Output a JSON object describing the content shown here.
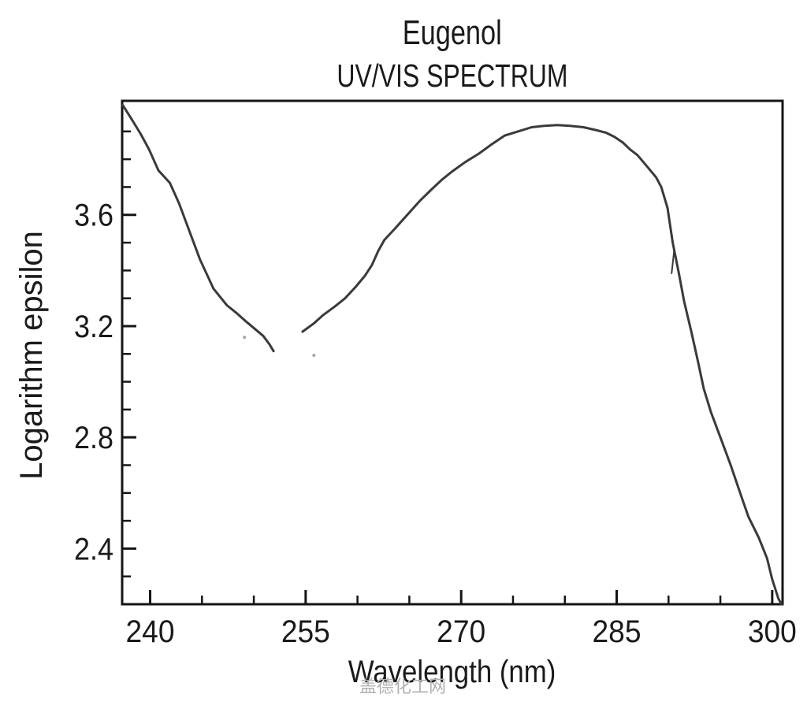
{
  "header": {
    "title": "Eugenol",
    "subtitle": "UV/VIS SPECTRUM"
  },
  "watermark": {
    "text": "盖德化工网",
    "color": "#b3b0b0"
  },
  "chart_data": {
    "type": "line",
    "title": "Eugenol",
    "subtitle": "UV/VIS SPECTRUM",
    "xlabel": "Wavelength (nm)",
    "ylabel": "Logarithm epsilon",
    "xlim": [
      237.3,
      301.0
    ],
    "ylim": [
      2.2,
      4.01
    ],
    "grid": false,
    "legend": null,
    "axis_color": "#151515",
    "text_color": "#1a1a1a",
    "line_color": "#3a3a3a",
    "speck_color": "#a8a4a4",
    "x_ticks_major": [
      240,
      255,
      270,
      285,
      300
    ],
    "x_ticks_minor": [
      245,
      250,
      260,
      265,
      275,
      280,
      290,
      295
    ],
    "y_ticks_major": [
      3.6,
      3.2,
      2.8,
      2.4
    ],
    "y_tick_labels": [
      "3.6",
      "3.2",
      "2.8",
      "2.4"
    ],
    "y_ticks_minor": [
      3.9,
      3.8,
      3.7,
      3.5,
      3.4,
      3.3,
      3.1,
      3.0,
      2.9,
      2.7,
      2.6,
      2.5,
      2.3
    ],
    "series": [
      {
        "name": "spectrum-curve-left-segment",
        "width": 3,
        "points": [
          [
            237.35,
            3.995
          ],
          [
            238.2,
            3.945
          ],
          [
            239.1,
            3.89
          ],
          [
            239.9,
            3.835
          ],
          [
            240.8,
            3.76
          ],
          [
            241.9,
            3.715
          ],
          [
            242.8,
            3.64
          ],
          [
            243.6,
            3.56
          ],
          [
            244.8,
            3.44
          ],
          [
            246.1,
            3.335
          ],
          [
            247.4,
            3.275
          ],
          [
            248.4,
            3.245
          ],
          [
            249.3,
            3.215
          ],
          [
            250.9,
            3.165
          ],
          [
            251.5,
            3.135
          ],
          [
            251.9,
            3.11
          ]
        ]
      },
      {
        "name": "spectrum-curve-main-segment",
        "width": 3,
        "points": [
          [
            254.7,
            3.18
          ],
          [
            255.8,
            3.21
          ],
          [
            256.7,
            3.24
          ],
          [
            257.8,
            3.27
          ],
          [
            258.8,
            3.3
          ],
          [
            259.8,
            3.34
          ],
          [
            260.7,
            3.38
          ],
          [
            261.4,
            3.42
          ],
          [
            262.0,
            3.47
          ],
          [
            262.6,
            3.51
          ],
          [
            263.6,
            3.55
          ],
          [
            264.8,
            3.6
          ],
          [
            266.0,
            3.65
          ],
          [
            267.1,
            3.69
          ],
          [
            268.1,
            3.725
          ],
          [
            269.1,
            3.755
          ],
          [
            270.4,
            3.79
          ],
          [
            271.7,
            3.82
          ],
          [
            273.0,
            3.855
          ],
          [
            274.2,
            3.885
          ],
          [
            275.5,
            3.9
          ],
          [
            276.8,
            3.915
          ],
          [
            278.0,
            3.92
          ],
          [
            279.3,
            3.923
          ],
          [
            280.5,
            3.92
          ],
          [
            281.8,
            3.915
          ],
          [
            283.0,
            3.905
          ],
          [
            284.0,
            3.895
          ],
          [
            284.8,
            3.88
          ],
          [
            285.6,
            3.86
          ],
          [
            286.3,
            3.835
          ],
          [
            287.0,
            3.815
          ],
          [
            287.8,
            3.78
          ],
          [
            288.8,
            3.735
          ],
          [
            289.3,
            3.7
          ],
          [
            289.9,
            3.625
          ],
          [
            290.4,
            3.5
          ],
          [
            291.0,
            3.39
          ],
          [
            291.5,
            3.29
          ],
          [
            292.2,
            3.18
          ],
          [
            292.8,
            3.08
          ],
          [
            293.4,
            2.975
          ],
          [
            294.1,
            2.89
          ],
          [
            295.2,
            2.78
          ],
          [
            296.0,
            2.7
          ],
          [
            297.0,
            2.59
          ],
          [
            297.7,
            2.515
          ],
          [
            298.7,
            2.44
          ],
          [
            299.5,
            2.365
          ],
          [
            300.0,
            2.29
          ],
          [
            300.6,
            2.22
          ],
          [
            300.9,
            2.2
          ]
        ]
      },
      {
        "name": "scan-artifact-spike",
        "width": 2,
        "points": [
          [
            290.55,
            3.475
          ],
          [
            290.45,
            3.44
          ],
          [
            290.3,
            3.39
          ]
        ]
      }
    ],
    "specks": [
      [
        249.1,
        3.16
      ],
      [
        255.8,
        3.095
      ]
    ]
  }
}
